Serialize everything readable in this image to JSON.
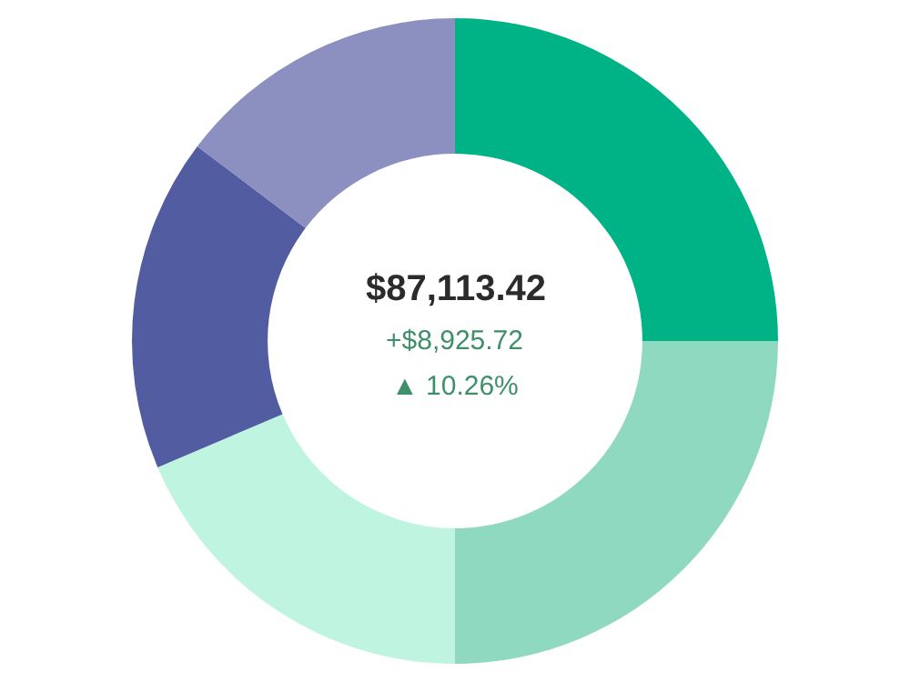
{
  "chart_data": {
    "type": "donut",
    "categories": [
      null,
      null,
      null,
      null,
      null
    ],
    "values": [
      25,
      25,
      18.6,
      16.7,
      14.7
    ],
    "colors": [
      "#00b386",
      "#8fd9c0",
      "#bff5e0",
      "#525ca0",
      "#8b90c0"
    ],
    "annotations": [
      "$87,113.42",
      "+$8,925.72",
      "▲ 10.26%"
    ],
    "legend": false
  }
}
